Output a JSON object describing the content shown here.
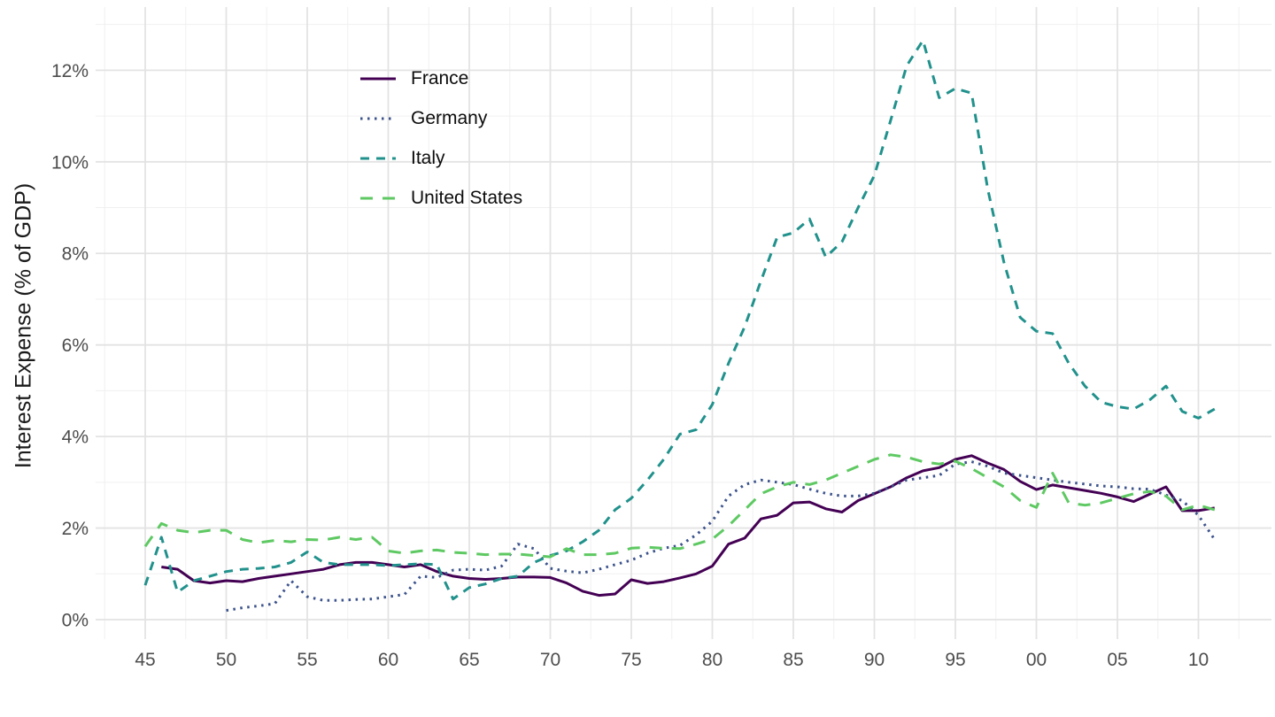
{
  "page": {
    "background": "#ffffff",
    "text_color": "#1a1a1a",
    "tick_label_color": "#4d4d4d",
    "grid_major_color": "#e3e3e3",
    "grid_minor_color": "#f0f0f0"
  },
  "chart_data": {
    "type": "line",
    "title": "",
    "xlabel": "",
    "ylabel": "Interest Expense (% of GDP)",
    "grid": "major+minor",
    "legend_position": "top-left-inside",
    "xlim": [
      1941.7,
      2014.3
    ],
    "ylim": [
      -0.45,
      13.4
    ],
    "x_tick_years": [
      1945,
      1950,
      1955,
      1960,
      1965,
      1970,
      1975,
      1980,
      1985,
      1990,
      1995,
      2000,
      2005,
      2010
    ],
    "x_tick_labels": [
      "45",
      "50",
      "55",
      "60",
      "65",
      "70",
      "75",
      "80",
      "85",
      "90",
      "95",
      "00",
      "05",
      "10"
    ],
    "y_ticks": [
      {
        "value": 0,
        "label": "0%"
      },
      {
        "value": 2,
        "label": "2%"
      },
      {
        "value": 4,
        "label": "4%"
      },
      {
        "value": 6,
        "label": "6%"
      },
      {
        "value": 8,
        "label": "8%"
      },
      {
        "value": 10,
        "label": "10%"
      },
      {
        "value": 12,
        "label": "12%"
      }
    ],
    "x": [
      1945,
      1946,
      1947,
      1948,
      1949,
      1950,
      1951,
      1952,
      1953,
      1954,
      1955,
      1956,
      1957,
      1958,
      1959,
      1960,
      1961,
      1962,
      1963,
      1964,
      1965,
      1966,
      1967,
      1968,
      1969,
      1970,
      1971,
      1972,
      1973,
      1974,
      1975,
      1976,
      1977,
      1978,
      1979,
      1980,
      1981,
      1982,
      1983,
      1984,
      1985,
      1986,
      1987,
      1988,
      1989,
      1990,
      1991,
      1992,
      1993,
      1994,
      1995,
      1996,
      1997,
      1998,
      1999,
      2000,
      2001,
      2002,
      2003,
      2004,
      2005,
      2006,
      2007,
      2008,
      2009,
      2010,
      2011
    ],
    "series": [
      {
        "name": "France",
        "color": "#440154",
        "dash": "solid",
        "values": [
          null,
          1.15,
          1.1,
          0.85,
          0.8,
          0.85,
          0.83,
          0.9,
          0.95,
          1.0,
          1.05,
          1.1,
          1.2,
          1.25,
          1.25,
          1.2,
          1.15,
          1.2,
          1.05,
          0.95,
          0.9,
          0.88,
          0.9,
          0.93,
          0.93,
          0.92,
          0.8,
          0.62,
          0.53,
          0.56,
          0.87,
          0.79,
          0.83,
          0.91,
          1.0,
          1.17,
          1.65,
          1.78,
          2.2,
          2.28,
          2.55,
          2.57,
          2.42,
          2.35,
          2.6,
          2.75,
          2.9,
          3.1,
          3.25,
          3.32,
          3.5,
          3.58,
          3.42,
          3.28,
          3.02,
          2.84,
          2.94,
          2.88,
          2.82,
          2.76,
          2.68,
          2.58,
          2.74,
          2.9,
          2.38,
          2.38,
          2.44
        ]
      },
      {
        "name": "Germany",
        "color": "#3b528b",
        "dash": "dotted",
        "values": [
          null,
          null,
          null,
          null,
          null,
          0.2,
          0.26,
          0.3,
          0.35,
          0.85,
          0.5,
          0.42,
          0.42,
          0.44,
          0.45,
          0.5,
          0.55,
          0.95,
          0.92,
          1.08,
          1.1,
          1.08,
          1.17,
          1.65,
          1.55,
          1.12,
          1.06,
          1.02,
          1.1,
          1.2,
          1.3,
          1.45,
          1.56,
          1.62,
          1.85,
          2.15,
          2.7,
          2.95,
          3.05,
          3.0,
          2.95,
          2.85,
          2.76,
          2.7,
          2.7,
          2.76,
          2.9,
          3.05,
          3.1,
          3.15,
          3.4,
          3.45,
          3.35,
          3.2,
          3.15,
          3.1,
          3.05,
          3.0,
          2.96,
          2.92,
          2.9,
          2.86,
          2.85,
          2.72,
          2.6,
          2.28,
          1.75
        ]
      },
      {
        "name": "Italy",
        "color": "#21918c",
        "dash": "dashed",
        "values": [
          0.75,
          1.8,
          0.6,
          0.85,
          0.95,
          1.05,
          1.1,
          1.12,
          1.15,
          1.25,
          1.48,
          1.25,
          1.2,
          1.2,
          1.2,
          1.18,
          1.2,
          1.22,
          1.2,
          0.45,
          0.7,
          0.78,
          0.9,
          0.95,
          1.25,
          1.4,
          1.5,
          1.7,
          1.95,
          2.4,
          2.65,
          3.05,
          3.5,
          4.05,
          4.15,
          4.7,
          5.6,
          6.4,
          7.4,
          8.35,
          8.45,
          8.75,
          7.92,
          8.25,
          9.0,
          9.7,
          10.9,
          12.1,
          12.65,
          11.4,
          11.6,
          11.5,
          9.4,
          7.8,
          6.6,
          6.3,
          6.25,
          5.6,
          5.1,
          4.75,
          4.65,
          4.6,
          4.8,
          5.1,
          4.55,
          4.4,
          4.6
        ]
      },
      {
        "name": "United States",
        "color": "#5ec962",
        "dash": "longdash",
        "values": [
          1.6,
          2.1,
          1.95,
          1.9,
          1.95,
          1.95,
          1.75,
          1.68,
          1.73,
          1.7,
          1.75,
          1.74,
          1.8,
          1.75,
          1.8,
          1.5,
          1.45,
          1.5,
          1.52,
          1.47,
          1.45,
          1.42,
          1.43,
          1.43,
          1.4,
          1.37,
          1.55,
          1.42,
          1.42,
          1.45,
          1.56,
          1.58,
          1.56,
          1.55,
          1.65,
          1.76,
          2.05,
          2.4,
          2.75,
          2.9,
          3.0,
          2.95,
          3.05,
          3.2,
          3.35,
          3.5,
          3.6,
          3.55,
          3.45,
          3.4,
          3.46,
          3.3,
          3.1,
          2.9,
          2.6,
          2.45,
          3.2,
          2.55,
          2.5,
          2.55,
          2.65,
          2.75,
          2.8,
          2.7,
          2.4,
          2.5,
          2.4
        ]
      }
    ]
  }
}
